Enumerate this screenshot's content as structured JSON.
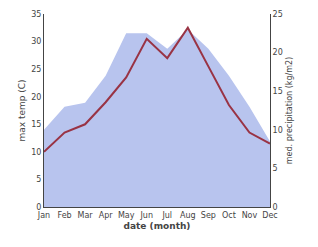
{
  "chart_data": {
    "type": "line",
    "xlabel": "date (month)",
    "ylabel": "max temp (C)",
    "y2label": "med. precipitation (kg/m2)",
    "categories": [
      "Jan",
      "Feb",
      "Mar",
      "Apr",
      "May",
      "Jun",
      "Jul",
      "Aug",
      "Sep",
      "Oct",
      "Nov",
      "Dec"
    ],
    "series": [
      {
        "type": "area",
        "axis": "y2",
        "color": "#b8c4ee",
        "values": [
          10.0,
          13.0,
          13.5,
          17.0,
          22.5,
          22.5,
          20.5,
          23.0,
          20.5,
          17.0,
          13.0,
          8.5
        ]
      },
      {
        "type": "line",
        "color": "#993344",
        "values": [
          10.0,
          13.5,
          15.0,
          19.0,
          23.5,
          30.5,
          27.0,
          32.5,
          25.5,
          18.5,
          13.5,
          11.5
        ]
      }
    ],
    "ylim": [
      0,
      35
    ],
    "yticks": [
      0,
      5,
      10,
      15,
      20,
      25,
      30,
      35
    ],
    "y2lim": [
      0,
      25
    ],
    "y2ticks": [
      0,
      5,
      10,
      15,
      20,
      25
    ],
    "grid": false
  }
}
